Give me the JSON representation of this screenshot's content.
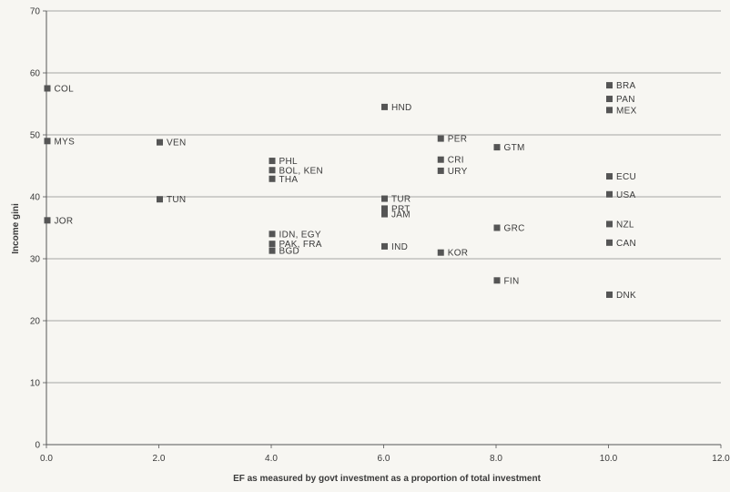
{
  "chart_data": {
    "type": "scatter",
    "xlabel": "EF as measured by govt investment as a proportion of total investment",
    "ylabel": "Income gini",
    "xlim": [
      0,
      12
    ],
    "ylim": [
      0,
      70
    ],
    "x_ticks": [
      "0.0",
      "2.0",
      "4.0",
      "6.0",
      "8.0",
      "10.0",
      "12.0"
    ],
    "y_ticks": [
      "0",
      "10",
      "20",
      "30",
      "40",
      "50",
      "60",
      "70"
    ],
    "grid": "horizontal",
    "marker": "square",
    "marker_color": "#555555",
    "points": [
      {
        "label": "COL",
        "x": 0.0,
        "y": 57.5
      },
      {
        "label": "MYS",
        "x": 0.0,
        "y": 49.0
      },
      {
        "label": "JOR",
        "x": 0.0,
        "y": 36.2
      },
      {
        "label": "VEN",
        "x": 2.0,
        "y": 48.8
      },
      {
        "label": "TUN",
        "x": 2.0,
        "y": 39.6
      },
      {
        "label": "PHL",
        "x": 4.0,
        "y": 45.8
      },
      {
        "label": "BOL, KEN",
        "x": 4.0,
        "y": 44.3
      },
      {
        "label": "THA",
        "x": 4.0,
        "y": 42.9
      },
      {
        "label": "IDN, EGY",
        "x": 4.0,
        "y": 34.0
      },
      {
        "label": "PAK, FRA",
        "x": 4.0,
        "y": 32.4
      },
      {
        "label": "BGD",
        "x": 4.0,
        "y": 31.3
      },
      {
        "label": "HND",
        "x": 6.0,
        "y": 54.5
      },
      {
        "label": "TUR",
        "x": 6.0,
        "y": 39.7
      },
      {
        "label": "PRT",
        "x": 6.0,
        "y": 38.1
      },
      {
        "label": "JAM",
        "x": 6.0,
        "y": 37.2
      },
      {
        "label": "IND",
        "x": 6.0,
        "y": 32.0
      },
      {
        "label": "PER",
        "x": 7.0,
        "y": 49.4
      },
      {
        "label": "CRI",
        "x": 7.0,
        "y": 46.0
      },
      {
        "label": "URY",
        "x": 7.0,
        "y": 44.2
      },
      {
        "label": "KOR",
        "x": 7.0,
        "y": 31.0
      },
      {
        "label": "GTM",
        "x": 8.0,
        "y": 48.0
      },
      {
        "label": "GRC",
        "x": 8.0,
        "y": 35.0
      },
      {
        "label": "FIN",
        "x": 8.0,
        "y": 26.5
      },
      {
        "label": "BRA",
        "x": 10.0,
        "y": 58.0
      },
      {
        "label": "PAN",
        "x": 10.0,
        "y": 55.8
      },
      {
        "label": "MEX",
        "x": 10.0,
        "y": 54.0
      },
      {
        "label": "ECU",
        "x": 10.0,
        "y": 43.3
      },
      {
        "label": "USA",
        "x": 10.0,
        "y": 40.4
      },
      {
        "label": "NZL",
        "x": 10.0,
        "y": 35.6
      },
      {
        "label": "CAN",
        "x": 10.0,
        "y": 32.6
      },
      {
        "label": "DNK",
        "x": 10.0,
        "y": 24.2
      }
    ]
  }
}
